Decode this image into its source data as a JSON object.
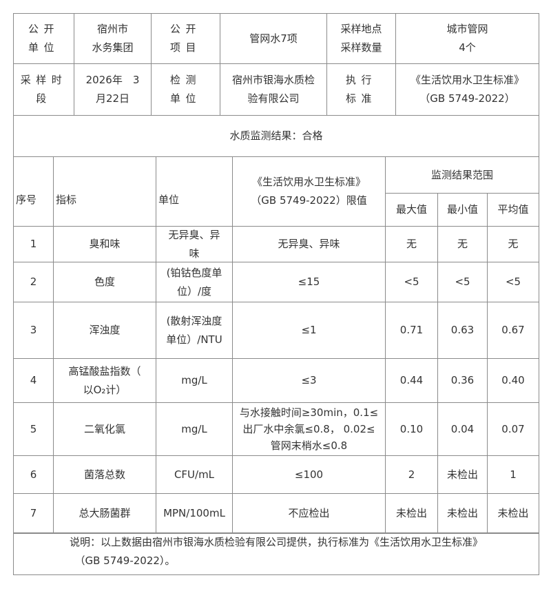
{
  "info": {
    "row1": [
      "公开\n单位",
      "宿州市\n水务集团",
      "公开\n项目",
      "管网水7项",
      "采样地点\n采样数量",
      "城市管网\n4个"
    ],
    "row2": [
      "采样时\n段",
      "2026年　3\n月22日",
      "检测\n单位",
      "宿州市银海水质检\n验有限公司",
      "执行\n标准",
      "《生活饮用水卫生标准》\n（GB 5749-2022）"
    ],
    "result": "水质监测结果：合格"
  },
  "table": {
    "headers": {
      "no": "序号",
      "indicator": "指标",
      "unit": "单位",
      "limit": "《生活饮用水卫生标准》\n（GB 5749-2022）限值",
      "range": "监测结果范围",
      "max": "最大值",
      "min": "最小值",
      "avg": "平均值"
    },
    "rows": [
      {
        "no": "1",
        "indicator": "臭和味",
        "unit": "无异臭、异\n味",
        "limit": "无异臭、异味",
        "max": "无",
        "min": "无",
        "avg": "无"
      },
      {
        "no": "2",
        "indicator": "色度",
        "unit": "(铂钴色度单\n位）/度",
        "limit": "≤15",
        "max": "<5",
        "min": "<5",
        "avg": "<5"
      },
      {
        "no": "3",
        "indicator": "浑浊度",
        "unit": "(散射浑浊度\n单位）/NTU",
        "limit": "≤1",
        "max": "0.71",
        "min": "0.63",
        "avg": "0.67"
      },
      {
        "no": "4",
        "indicator": "高锰酸盐指数（\n以O₂计）",
        "unit": "mg/L",
        "limit": "≤3",
        "max": "0.44",
        "min": "0.36",
        "avg": "0.40"
      },
      {
        "no": "5",
        "indicator": "二氧化氯",
        "unit": "mg/L",
        "limit": "与水接触时间≥30min，0.1≤\n出厂水中余氯≤0.8， 0.02≤\n管网末梢水≤0.8",
        "max": "0.10",
        "min": "0.04",
        "avg": "0.07"
      },
      {
        "no": "6",
        "indicator": "菌落总数",
        "unit": "CFU/mL",
        "limit": "≤100",
        "max": "2",
        "min": "未检出",
        "avg": "1"
      },
      {
        "no": "7",
        "indicator": "总大肠菌群",
        "unit": "MPN/100mL",
        "limit": "不应检出",
        "max": "未检出",
        "min": "未检出",
        "avg": "未检出"
      }
    ]
  },
  "note": "说明：以上数据由宿州市银海水质检验有限公司提供，执行标准为《生活饮用水卫生标准》\n　（GB 5749-2022）。"
}
